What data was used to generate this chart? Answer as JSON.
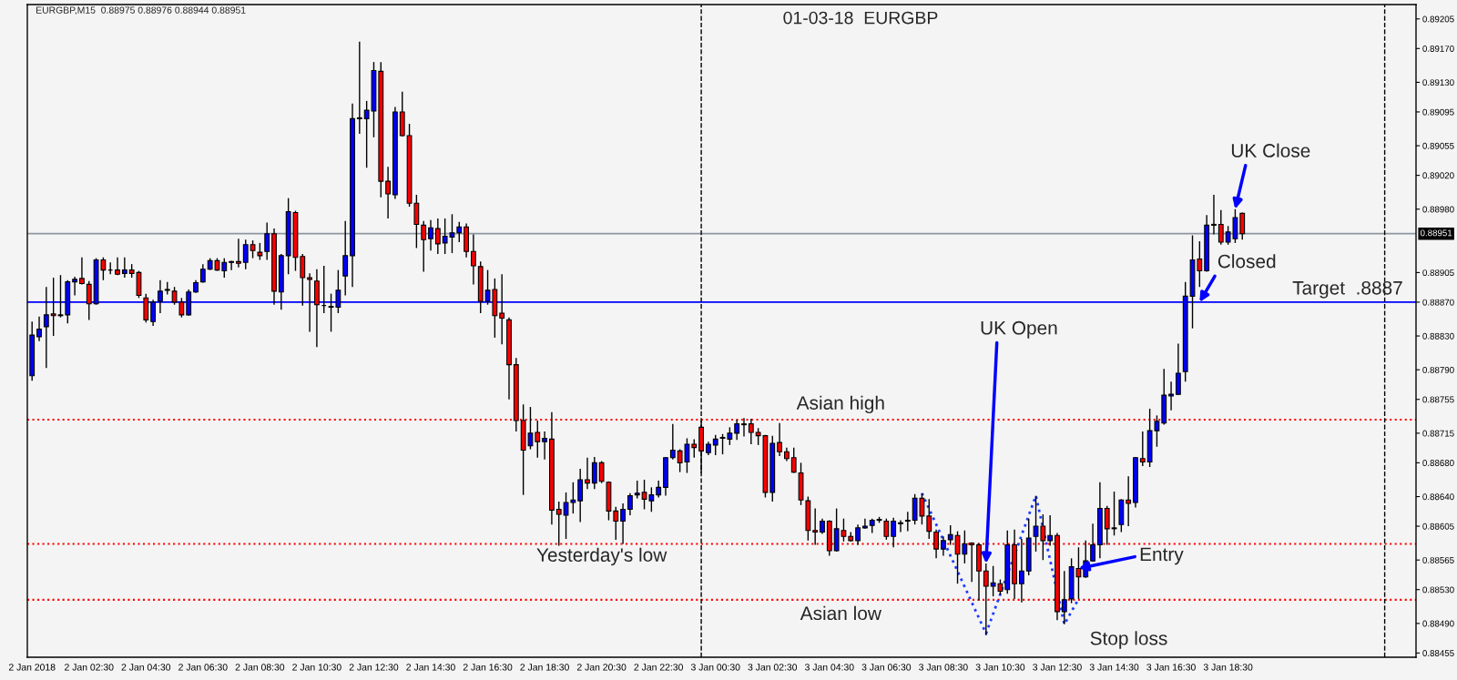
{
  "chart_data": {
    "type": "candlestick",
    "title": "01-03-18  EURGBP",
    "x": [
      "2018-01-02T00:30",
      "2018-01-02T00:45",
      "2018-01-02T01:00",
      "2018-01-02T01:15",
      "2018-01-02T01:30",
      "2018-01-02T01:45",
      "2018-01-02T02:00",
      "2018-01-02T02:15",
      "2018-01-02T02:30",
      "2018-01-02T02:45",
      "2018-01-02T03:00",
      "2018-01-02T03:15",
      "2018-01-02T03:30",
      "2018-01-02T03:45",
      "2018-01-02T04:00",
      "2018-01-02T04:15",
      "2018-01-02T04:30",
      "2018-01-02T04:45",
      "2018-01-02T05:00",
      "2018-01-02T05:15",
      "2018-01-02T05:30",
      "2018-01-02T05:45",
      "2018-01-02T06:00",
      "2018-01-02T06:15",
      "2018-01-02T06:30",
      "2018-01-02T06:45",
      "2018-01-02T07:00",
      "2018-01-02T07:15",
      "2018-01-02T07:30",
      "2018-01-02T07:45",
      "2018-01-02T08:00",
      "2018-01-02T08:15",
      "2018-01-02T08:30",
      "2018-01-02T08:45",
      "2018-01-02T09:00",
      "2018-01-02T09:15",
      "2018-01-02T09:30",
      "2018-01-02T09:45",
      "2018-01-02T10:00",
      "2018-01-02T10:15",
      "2018-01-02T10:30",
      "2018-01-02T10:45",
      "2018-01-02T11:00",
      "2018-01-02T11:15",
      "2018-01-02T11:30",
      "2018-01-02T11:45",
      "2018-01-02T12:00",
      "2018-01-02T12:15",
      "2018-01-02T12:30",
      "2018-01-02T12:45",
      "2018-01-02T13:00",
      "2018-01-02T13:15",
      "2018-01-02T13:30",
      "2018-01-02T13:45",
      "2018-01-02T14:00",
      "2018-01-02T14:15",
      "2018-01-02T14:30",
      "2018-01-02T14:45",
      "2018-01-02T15:00",
      "2018-01-02T15:15",
      "2018-01-02T15:30",
      "2018-01-02T15:45",
      "2018-01-02T16:00",
      "2018-01-02T16:15",
      "2018-01-02T16:30",
      "2018-01-02T16:45",
      "2018-01-02T17:00",
      "2018-01-02T17:15",
      "2018-01-02T17:30",
      "2018-01-02T17:45",
      "2018-01-02T18:00",
      "2018-01-02T18:15",
      "2018-01-02T18:30",
      "2018-01-02T18:45",
      "2018-01-02T19:00",
      "2018-01-02T19:15",
      "2018-01-02T19:30",
      "2018-01-02T19:45",
      "2018-01-02T20:00",
      "2018-01-02T20:15",
      "2018-01-02T20:30",
      "2018-01-02T20:45",
      "2018-01-02T21:00",
      "2018-01-02T21:15",
      "2018-01-02T21:30",
      "2018-01-02T21:45",
      "2018-01-02T22:00",
      "2018-01-02T22:15",
      "2018-01-02T22:30",
      "2018-01-02T22:45",
      "2018-01-02T23:00",
      "2018-01-02T23:15",
      "2018-01-02T23:30",
      "2018-01-02T23:45",
      "2018-01-03T00:00",
      "2018-01-03T00:15",
      "2018-01-03T00:30",
      "2018-01-03T00:45",
      "2018-01-03T01:00",
      "2018-01-03T01:15",
      "2018-01-03T01:30",
      "2018-01-03T01:45",
      "2018-01-03T02:00",
      "2018-01-03T02:15",
      "2018-01-03T02:30",
      "2018-01-03T02:45",
      "2018-01-03T03:00",
      "2018-01-03T03:15",
      "2018-01-03T03:30",
      "2018-01-03T03:45",
      "2018-01-03T04:00",
      "2018-01-03T04:15",
      "2018-01-03T04:30",
      "2018-01-03T04:45",
      "2018-01-03T05:00",
      "2018-01-03T05:15",
      "2018-01-03T05:30",
      "2018-01-03T05:45",
      "2018-01-03T06:00",
      "2018-01-03T06:15",
      "2018-01-03T06:30",
      "2018-01-03T06:45",
      "2018-01-03T07:00",
      "2018-01-03T07:15",
      "2018-01-03T07:30",
      "2018-01-03T07:45",
      "2018-01-03T08:00",
      "2018-01-03T08:15",
      "2018-01-03T08:30",
      "2018-01-03T08:45",
      "2018-01-03T09:00",
      "2018-01-03T09:15",
      "2018-01-03T09:30",
      "2018-01-03T09:45",
      "2018-01-03T10:00",
      "2018-01-03T10:15",
      "2018-01-03T10:30",
      "2018-01-03T10:45",
      "2018-01-03T11:00",
      "2018-01-03T11:15",
      "2018-01-03T11:30",
      "2018-01-03T11:45",
      "2018-01-03T12:00",
      "2018-01-03T12:15",
      "2018-01-03T12:30",
      "2018-01-03T12:45",
      "2018-01-03T13:00",
      "2018-01-03T13:15",
      "2018-01-03T13:30",
      "2018-01-03T13:45",
      "2018-01-03T14:00",
      "2018-01-03T14:15",
      "2018-01-03T14:30",
      "2018-01-03T14:45",
      "2018-01-03T15:00",
      "2018-01-03T15:15",
      "2018-01-03T15:30",
      "2018-01-03T15:45",
      "2018-01-03T16:00",
      "2018-01-03T16:15",
      "2018-01-03T16:30",
      "2018-01-03T16:45",
      "2018-01-03T17:00",
      "2018-01-03T17:15",
      "2018-01-03T17:30",
      "2018-01-03T17:45",
      "2018-01-03T18:00",
      "2018-01-03T18:15",
      "2018-01-03T18:30",
      "2018-01-03T18:45",
      "2018-01-03T19:00"
    ],
    "ohlc": [
      [
        0.88783,
        0.88847,
        0.88777,
        0.88831
      ],
      [
        0.88829,
        0.88853,
        0.88824,
        0.88838
      ],
      [
        0.88841,
        0.88888,
        0.88792,
        0.88855
      ],
      [
        0.88856,
        0.88899,
        0.8883,
        0.88854
      ],
      [
        0.88855,
        0.88902,
        0.88852,
        0.88854
      ],
      [
        0.88855,
        0.88896,
        0.88845,
        0.88894
      ],
      [
        0.88894,
        0.889,
        0.88878,
        0.88897
      ],
      [
        0.88898,
        0.88923,
        0.88891,
        0.88892
      ],
      [
        0.88891,
        0.88895,
        0.88849,
        0.88868
      ],
      [
        0.88868,
        0.88922,
        0.88867,
        0.8892
      ],
      [
        0.8892,
        0.88923,
        0.88896,
        0.88908
      ],
      [
        0.88908,
        0.88917,
        0.88903,
        0.88908
      ],
      [
        0.88908,
        0.88923,
        0.88902,
        0.88903
      ],
      [
        0.88904,
        0.88923,
        0.88899,
        0.88908
      ],
      [
        0.88908,
        0.88915,
        0.88899,
        0.88904
      ],
      [
        0.88905,
        0.88907,
        0.88875,
        0.88878
      ],
      [
        0.88875,
        0.8888,
        0.88846,
        0.88849
      ],
      [
        0.88847,
        0.88873,
        0.88842,
        0.8887
      ],
      [
        0.88871,
        0.88896,
        0.88857,
        0.88883
      ],
      [
        0.88884,
        0.88894,
        0.88879,
        0.88885
      ],
      [
        0.88883,
        0.88888,
        0.88867,
        0.8887
      ],
      [
        0.8887,
        0.88875,
        0.88852,
        0.88855
      ],
      [
        0.88855,
        0.88885,
        0.88854,
        0.88882
      ],
      [
        0.88882,
        0.88896,
        0.88881,
        0.88893
      ],
      [
        0.88894,
        0.88915,
        0.88893,
        0.88909
      ],
      [
        0.88909,
        0.88922,
        0.88908,
        0.88919
      ],
      [
        0.88919,
        0.88922,
        0.88907,
        0.88908
      ],
      [
        0.88907,
        0.88922,
        0.88899,
        0.88917
      ],
      [
        0.88917,
        0.88919,
        0.88908,
        0.88918
      ],
      [
        0.88918,
        0.88945,
        0.88911,
        0.88916
      ],
      [
        0.88917,
        0.88944,
        0.88909,
        0.88938
      ],
      [
        0.88938,
        0.88943,
        0.88922,
        0.88931
      ],
      [
        0.88929,
        0.8894,
        0.8892,
        0.88925
      ],
      [
        0.8893,
        0.88964,
        0.8892,
        0.88951
      ],
      [
        0.88951,
        0.88957,
        0.88867,
        0.88883
      ],
      [
        0.88882,
        0.88927,
        0.88861,
        0.88925
      ],
      [
        0.88925,
        0.88993,
        0.88903,
        0.88977
      ],
      [
        0.88976,
        0.88978,
        0.88907,
        0.88923
      ],
      [
        0.88924,
        0.88927,
        0.88866,
        0.88899
      ],
      [
        0.88899,
        0.88904,
        0.88835,
        0.88897
      ],
      [
        0.88895,
        0.88909,
        0.88817,
        0.88867
      ],
      [
        0.88866,
        0.88913,
        0.88857,
        0.88866
      ],
      [
        0.88865,
        0.8888,
        0.88835,
        0.88864
      ],
      [
        0.88864,
        0.88908,
        0.88857,
        0.88884
      ],
      [
        0.88901,
        0.88966,
        0.88878,
        0.88925
      ],
      [
        0.88925,
        0.89105,
        0.88888,
        0.89087
      ],
      [
        0.89087,
        0.89178,
        0.89069,
        0.89088
      ],
      [
        0.89087,
        0.89108,
        0.89029,
        0.89097
      ],
      [
        0.89096,
        0.89154,
        0.89065,
        0.89144
      ],
      [
        0.89143,
        0.89154,
        0.88994,
        0.89013
      ],
      [
        0.89013,
        0.8903,
        0.88969,
        0.88998
      ],
      [
        0.88997,
        0.89101,
        0.88992,
        0.89095
      ],
      [
        0.89095,
        0.89119,
        0.89066,
        0.89067
      ],
      [
        0.89067,
        0.89081,
        0.88983,
        0.88987
      ],
      [
        0.88987,
        0.88997,
        0.88934,
        0.88962
      ],
      [
        0.88961,
        0.88966,
        0.88906,
        0.88944
      ],
      [
        0.88945,
        0.88967,
        0.88931,
        0.88958
      ],
      [
        0.88957,
        0.88969,
        0.88927,
        0.88939
      ],
      [
        0.8894,
        0.88969,
        0.88927,
        0.88948
      ],
      [
        0.88947,
        0.88974,
        0.88928,
        0.88952
      ],
      [
        0.88952,
        0.88965,
        0.88941,
        0.88959
      ],
      [
        0.88959,
        0.88963,
        0.88923,
        0.8893
      ],
      [
        0.8893,
        0.8895,
        0.88891,
        0.88913
      ],
      [
        0.88912,
        0.88918,
        0.88857,
        0.88871
      ],
      [
        0.88871,
        0.88908,
        0.88867,
        0.88884
      ],
      [
        0.88885,
        0.88898,
        0.88828,
        0.88854
      ],
      [
        0.88857,
        0.88903,
        0.8882,
        0.88851
      ],
      [
        0.88849,
        0.88852,
        0.88755,
        0.88796
      ],
      [
        0.88796,
        0.88804,
        0.88717,
        0.8873
      ],
      [
        0.8873,
        0.88749,
        0.88642,
        0.88695
      ],
      [
        0.887,
        0.88746,
        0.88696,
        0.88715
      ],
      [
        0.88716,
        0.8873,
        0.88686,
        0.88705
      ],
      [
        0.88705,
        0.88717,
        0.88684,
        0.88709
      ],
      [
        0.88708,
        0.8874,
        0.88607,
        0.88624
      ],
      [
        0.88625,
        0.88634,
        0.88582,
        0.88619
      ],
      [
        0.88618,
        0.88645,
        0.8859,
        0.88633
      ],
      [
        0.88633,
        0.88657,
        0.8862,
        0.88636
      ],
      [
        0.88635,
        0.88673,
        0.8861,
        0.8866
      ],
      [
        0.8866,
        0.88686,
        0.88649,
        0.88656
      ],
      [
        0.88656,
        0.88687,
        0.88649,
        0.8868
      ],
      [
        0.8868,
        0.88682,
        0.88656,
        0.88658
      ],
      [
        0.88657,
        0.88658,
        0.88612,
        0.88623
      ],
      [
        0.88623,
        0.88628,
        0.88589,
        0.88611
      ],
      [
        0.88611,
        0.88632,
        0.88584,
        0.88625
      ],
      [
        0.88625,
        0.88644,
        0.88618,
        0.88641
      ],
      [
        0.88642,
        0.88659,
        0.88638,
        0.88644
      ],
      [
        0.88645,
        0.8866,
        0.88625,
        0.88637
      ],
      [
        0.88635,
        0.88651,
        0.88622,
        0.88642
      ],
      [
        0.88642,
        0.88659,
        0.88639,
        0.88651
      ],
      [
        0.88651,
        0.88687,
        0.88641,
        0.88686
      ],
      [
        0.88686,
        0.88726,
        0.88684,
        0.88695
      ],
      [
        0.88694,
        0.88696,
        0.88669,
        0.8868
      ],
      [
        0.88681,
        0.88709,
        0.88668,
        0.88702
      ],
      [
        0.88702,
        0.88708,
        0.88686,
        0.88698
      ],
      [
        0.88722,
        0.8873,
        0.88668,
        0.88694
      ],
      [
        0.88692,
        0.88705,
        0.88689,
        0.88702
      ],
      [
        0.88701,
        0.88713,
        0.88689,
        0.88708
      ],
      [
        0.88709,
        0.88714,
        0.8869,
        0.8871
      ],
      [
        0.88708,
        0.88722,
        0.88701,
        0.88715
      ],
      [
        0.88715,
        0.88731,
        0.88707,
        0.88726
      ],
      [
        0.88726,
        0.88733,
        0.88711,
        0.88725
      ],
      [
        0.88726,
        0.88732,
        0.88702,
        0.88716
      ],
      [
        0.88716,
        0.88721,
        0.88701,
        0.88712
      ],
      [
        0.88712,
        0.88713,
        0.88639,
        0.88645
      ],
      [
        0.88645,
        0.88712,
        0.88634,
        0.88703
      ],
      [
        0.88704,
        0.88727,
        0.88688,
        0.88693
      ],
      [
        0.88693,
        0.88698,
        0.88682,
        0.88685
      ],
      [
        0.88686,
        0.88698,
        0.88668,
        0.88669
      ],
      [
        0.88668,
        0.8868,
        0.8863,
        0.88636
      ],
      [
        0.88635,
        0.8864,
        0.88588,
        0.886
      ],
      [
        0.886,
        0.88626,
        0.88583,
        0.88598
      ],
      [
        0.88598,
        0.88614,
        0.88596,
        0.88611
      ],
      [
        0.88611,
        0.88612,
        0.8857,
        0.88576
      ],
      [
        0.88576,
        0.88626,
        0.88575,
        0.88602
      ],
      [
        0.886,
        0.88614,
        0.88587,
        0.88593
      ],
      [
        0.88593,
        0.88598,
        0.88587,
        0.88588
      ],
      [
        0.88588,
        0.88607,
        0.88583,
        0.88603
      ],
      [
        0.88603,
        0.88614,
        0.88602,
        0.88605
      ],
      [
        0.88606,
        0.88614,
        0.88597,
        0.88612
      ],
      [
        0.88612,
        0.88616,
        0.88609,
        0.88613
      ],
      [
        0.88611,
        0.88614,
        0.88589,
        0.88593
      ],
      [
        0.88593,
        0.88615,
        0.8858,
        0.88611
      ],
      [
        0.88608,
        0.88612,
        0.88598,
        0.88609
      ],
      [
        0.88611,
        0.88622,
        0.88599,
        0.88612
      ],
      [
        0.88612,
        0.88643,
        0.88607,
        0.88638
      ],
      [
        0.88638,
        0.88644,
        0.88607,
        0.88617
      ],
      [
        0.88617,
        0.88637,
        0.8859,
        0.88599
      ],
      [
        0.88598,
        0.88601,
        0.88567,
        0.88578
      ],
      [
        0.88578,
        0.88593,
        0.8857,
        0.88588
      ],
      [
        0.88589,
        0.88606,
        0.88583,
        0.88595
      ],
      [
        0.88594,
        0.88599,
        0.88537,
        0.88572
      ],
      [
        0.88572,
        0.886,
        0.88561,
        0.88584
      ],
      [
        0.88585,
        0.88586,
        0.88539,
        0.88583
      ],
      [
        0.88583,
        0.88585,
        0.88517,
        0.88552
      ],
      [
        0.88552,
        0.88561,
        0.88476,
        0.88534
      ],
      [
        0.88534,
        0.88558,
        0.88522,
        0.88538
      ],
      [
        0.88537,
        0.88542,
        0.88524,
        0.88528
      ],
      [
        0.8853,
        0.886,
        0.88525,
        0.88583
      ],
      [
        0.88583,
        0.88601,
        0.88519,
        0.88537
      ],
      [
        0.88537,
        0.8859,
        0.88515,
        0.88552
      ],
      [
        0.88552,
        0.88614,
        0.88547,
        0.88591
      ],
      [
        0.88593,
        0.88641,
        0.88575,
        0.88605
      ],
      [
        0.88605,
        0.88619,
        0.88565,
        0.88588
      ],
      [
        0.88588,
        0.88618,
        0.88582,
        0.88594
      ],
      [
        0.88594,
        0.88597,
        0.88494,
        0.88504
      ],
      [
        0.88504,
        0.88552,
        0.88489,
        0.88518
      ],
      [
        0.88519,
        0.88567,
        0.88514,
        0.88557
      ],
      [
        0.88555,
        0.8858,
        0.88519,
        0.88545
      ],
      [
        0.88545,
        0.88588,
        0.88544,
        0.88564
      ],
      [
        0.88564,
        0.88608,
        0.88563,
        0.88583
      ],
      [
        0.88583,
        0.88657,
        0.88567,
        0.88626
      ],
      [
        0.88626,
        0.88629,
        0.88583,
        0.88602
      ],
      [
        0.88603,
        0.88646,
        0.88594,
        0.88602
      ],
      [
        0.88607,
        0.88637,
        0.88598,
        0.88636
      ],
      [
        0.88636,
        0.88664,
        0.88605,
        0.88632
      ],
      [
        0.88633,
        0.88687,
        0.88627,
        0.88686
      ],
      [
        0.88685,
        0.88717,
        0.88676,
        0.88681
      ],
      [
        0.88681,
        0.88744,
        0.88675,
        0.88718
      ],
      [
        0.88718,
        0.88736,
        0.88699,
        0.88729
      ],
      [
        0.88727,
        0.88791,
        0.88725,
        0.8876
      ],
      [
        0.88759,
        0.88776,
        0.88742,
        0.88761
      ],
      [
        0.88761,
        0.88821,
        0.8876,
        0.88786
      ],
      [
        0.88788,
        0.88894,
        0.88776,
        0.88877
      ],
      [
        0.88877,
        0.88949,
        0.88839,
        0.8892
      ],
      [
        0.88921,
        0.88942,
        0.88888,
        0.88907
      ],
      [
        0.88907,
        0.88973,
        0.88906,
        0.88961
      ],
      [
        0.88962,
        0.88997,
        0.8895,
        0.88961
      ],
      [
        0.88962,
        0.88979,
        0.88938,
        0.88941
      ],
      [
        0.88941,
        0.8896,
        0.88938,
        0.88953
      ],
      [
        0.88945,
        0.8898,
        0.8894,
        0.8897
      ],
      [
        0.88975,
        0.88976,
        0.88944,
        0.88951
      ]
    ],
    "colors": [
      "#0000ff",
      "#0000ff",
      "#0000ff",
      "#ff0000",
      "#ff0000",
      "#0000ff",
      "#0000ff",
      "#ff0000",
      "#ff0000",
      "#0000ff",
      "#ff0000",
      "#000000",
      "#ff0000",
      "#0000ff",
      "#ff0000",
      "#ff0000",
      "#ff0000",
      "#0000ff",
      "#0000ff",
      "#0000ff",
      "#ff0000",
      "#ff0000",
      "#0000ff",
      "#0000ff",
      "#0000ff",
      "#0000ff",
      "#ff0000",
      "#0000ff",
      "#0000ff",
      "#ff0000",
      "#0000ff",
      "#ff0000",
      "#ff0000",
      "#0000ff",
      "#ff0000",
      "#0000ff",
      "#0000ff",
      "#ff0000",
      "#ff0000",
      "#ff0000",
      "#ff0000",
      "#000000",
      "#ff0000",
      "#0000ff",
      "#0000ff",
      "#0000ff",
      "#0000ff",
      "#0000ff",
      "#0000ff",
      "#ff0000",
      "#ff0000",
      "#0000ff",
      "#ff0000",
      "#ff0000",
      "#ff0000",
      "#ff0000",
      "#0000ff",
      "#ff0000",
      "#0000ff",
      "#0000ff",
      "#0000ff",
      "#ff0000",
      "#ff0000",
      "#ff0000",
      "#0000ff",
      "#ff0000",
      "#ff0000",
      "#ff0000",
      "#ff0000",
      "#ff0000",
      "#0000ff",
      "#ff0000",
      "#0000ff",
      "#ff0000",
      "#ff0000",
      "#0000ff",
      "#0000ff",
      "#0000ff",
      "#ff0000",
      "#0000ff",
      "#ff0000",
      "#ff0000",
      "#ff0000",
      "#0000ff",
      "#0000ff",
      "#0000ff",
      "#ff0000",
      "#0000ff",
      "#0000ff",
      "#0000ff",
      "#0000ff",
      "#ff0000",
      "#0000ff",
      "#ff0000",
      "#ff0000",
      "#0000ff",
      "#0000ff",
      "#0000ff",
      "#0000ff",
      "#0000ff",
      "#ff0000",
      "#ff0000",
      "#ff0000",
      "#ff0000",
      "#0000ff",
      "#ff0000",
      "#ff0000",
      "#ff0000",
      "#ff0000",
      "#ff0000",
      "#ff0000",
      "#0000ff",
      "#ff0000",
      "#0000ff",
      "#ff0000",
      "#ff0000",
      "#0000ff",
      "#0000ff",
      "#0000ff",
      "#0000ff",
      "#ff0000",
      "#0000ff",
      "#0000ff",
      "#0000ff",
      "#0000ff",
      "#ff0000",
      "#ff0000",
      "#ff0000",
      "#0000ff",
      "#0000ff",
      "#ff0000",
      "#0000ff",
      "#ff0000",
      "#ff0000",
      "#ff0000",
      "#0000ff",
      "#ff0000",
      "#0000ff",
      "#ff0000",
      "#0000ff",
      "#0000ff",
      "#0000ff",
      "#ff0000",
      "#0000ff",
      "#ff0000",
      "#0000ff",
      "#0000ff",
      "#ff0000",
      "#0000ff",
      "#0000ff",
      "#0000ff",
      "#ff0000",
      "#ff0000",
      "#0000ff",
      "#ff0000",
      "#0000ff",
      "#ff0000",
      "#0000ff",
      "#0000ff",
      "#0000ff",
      "#0000ff",
      "#0000ff",
      "#0000ff",
      "#0000ff",
      "#ff0000",
      "#0000ff",
      "#ff0000",
      "#ff0000",
      "#0000ff",
      "#0000ff",
      "#ff0000"
    ],
    "series": [
      {
        "type": "line",
        "x": [
          "2018-01-03T07:45",
          "2018-01-03T10:00",
          "2018-01-03T11:45",
          "2018-01-03T12:45",
          "2018-01-03T13:15"
        ],
        "values": [
          0.88644,
          0.88478,
          0.88641,
          0.88489,
          0.88519
        ],
        "color": "#1e3cff",
        "line_style": "dotted"
      }
    ],
    "xlim": [
      "2018-01-02T00:20",
      "2018-01-04T01:06"
    ],
    "xticks": [
      {
        "value": "2018-01-02T00:30",
        "label": "2 Jan 2018"
      },
      {
        "value": "2018-01-02T02:30",
        "label": "2 Jan 02:30"
      },
      {
        "value": "2018-01-02T04:30",
        "label": "2 Jan 04:30"
      },
      {
        "value": "2018-01-02T06:30",
        "label": "2 Jan 06:30"
      },
      {
        "value": "2018-01-02T08:30",
        "label": "2 Jan 08:30"
      },
      {
        "value": "2018-01-02T10:30",
        "label": "2 Jan 10:30"
      },
      {
        "value": "2018-01-02T12:30",
        "label": "2 Jan 12:30"
      },
      {
        "value": "2018-01-02T14:30",
        "label": "2 Jan 14:30"
      },
      {
        "value": "2018-01-02T16:30",
        "label": "2 Jan 16:30"
      },
      {
        "value": "2018-01-02T18:30",
        "label": "2 Jan 18:30"
      },
      {
        "value": "2018-01-02T20:30",
        "label": "2 Jan 20:30"
      },
      {
        "value": "2018-01-02T22:30",
        "label": "2 Jan 22:30"
      },
      {
        "value": "2018-01-03T00:30",
        "label": "3 Jan 00:30"
      },
      {
        "value": "2018-01-03T02:30",
        "label": "3 Jan 02:30"
      },
      {
        "value": "2018-01-03T04:30",
        "label": "3 Jan 04:30"
      },
      {
        "value": "2018-01-03T06:30",
        "label": "3 Jan 06:30"
      },
      {
        "value": "2018-01-03T08:30",
        "label": "3 Jan 08:30"
      },
      {
        "value": "2018-01-03T10:30",
        "label": "3 Jan 10:30"
      },
      {
        "value": "2018-01-03T12:30",
        "label": "3 Jan 12:30"
      },
      {
        "value": "2018-01-03T14:30",
        "label": "3 Jan 14:30"
      },
      {
        "value": "2018-01-03T16:30",
        "label": "3 Jan 16:30"
      },
      {
        "value": "2018-01-03T18:30",
        "label": "3 Jan 18:30"
      }
    ],
    "ylim": [
      0.8845,
      0.89222
    ],
    "yticks": [
      0.89205,
      {
        "value": 0.8917,
        "label": "0.89170"
      },
      {
        "value": 0.8913,
        "label": "0.89130"
      },
      0.89095,
      0.89055,
      {
        "value": 0.8902,
        "label": "0.89020"
      },
      {
        "value": 0.8898,
        "label": "0.88980"
      },
      0.88905,
      {
        "value": 0.8887,
        "label": "0.88870"
      },
      {
        "value": 0.8883,
        "label": "0.88830"
      },
      {
        "value": 0.8879,
        "label": "0.88790"
      },
      0.88755,
      0.88715,
      {
        "value": 0.8868,
        "label": "0.88680"
      },
      {
        "value": 0.8864,
        "label": "0.88640"
      },
      0.88605,
      0.88565,
      {
        "value": 0.8853,
        "label": "0.88530"
      },
      {
        "value": 0.8849,
        "label": "0.88490"
      },
      0.88455
    ],
    "ref_lines": [
      {
        "axis": "y",
        "value": 0.88951,
        "label": "0.88951",
        "color": "#8c96a0",
        "line_style": "solid"
      },
      {
        "axis": "y",
        "value": 0.8887,
        "color": "#0000ff",
        "line_style": "solid"
      },
      {
        "axis": "y",
        "value": 0.88731,
        "color": "#ff0000",
        "line_style": "dotted"
      },
      {
        "axis": "y",
        "value": 0.88584,
        "color": "#ff0000",
        "line_style": "dotted"
      },
      {
        "axis": "y",
        "value": 0.88518,
        "color": "#ff0000",
        "line_style": "dotted"
      },
      {
        "axis": "x",
        "value": "2018-01-03T00:00",
        "color": "#000000",
        "line_style": "dashed"
      },
      {
        "axis": "x",
        "value": "2018-01-04T00:00",
        "color": "#000000",
        "line_style": "dashed"
      }
    ],
    "annotations": [
      "EURGBP,M15  0.88975 0.88976 0.88944 0.88951",
      {
        "text": "Asian high",
        "x": "2018-01-03T04:54",
        "y": 0.88731
      },
      {
        "text": "Asian low",
        "x": "2018-01-03T04:54",
        "y": 0.88518
      },
      {
        "text": "Yesterday's low",
        "x": "2018-01-02T20:30",
        "y": 0.88584
      },
      {
        "text": "Target  .8887",
        "x": "2018-01-03T22:42",
        "y": 0.8887
      },
      {
        "text": "UK Open",
        "x": "2018-01-03T10:00",
        "y": 0.88561
      },
      {
        "text": "UK Close",
        "x": "2018-01-03T18:45",
        "y": 0.8898
      },
      {
        "text": "Closed",
        "x": "2018-01-03T17:30",
        "y": 0.8887
      },
      {
        "text": "Entry",
        "x": "2018-01-03T13:15",
        "y": 0.88555
      },
      "Stop loss"
    ]
  }
}
